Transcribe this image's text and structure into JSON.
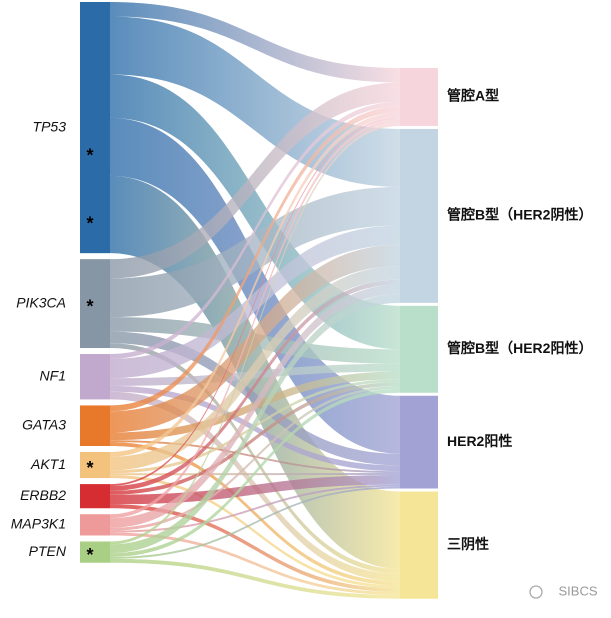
{
  "chart_data": {
    "type": "sankey",
    "sources": [
      {
        "name": "TP53",
        "color": "#2b6ca8",
        "marks": [
          "*",
          "*"
        ]
      },
      {
        "name": "PIK3CA",
        "color": "#8796a5",
        "marks": [
          "*"
        ]
      },
      {
        "name": "NF1",
        "color": "#c0a9cc",
        "marks": []
      },
      {
        "name": "GATA3",
        "color": "#e8792b",
        "marks": []
      },
      {
        "name": "AKT1",
        "color": "#f3c27c",
        "marks": [
          "*"
        ]
      },
      {
        "name": "ERBB2",
        "color": "#d62d33",
        "marks": []
      },
      {
        "name": "MAP3K1",
        "color": "#ef9a9a",
        "marks": []
      },
      {
        "name": "PTEN",
        "color": "#a9cf84",
        "marks": [
          "*"
        ]
      }
    ],
    "targets": [
      {
        "name": "管腔A型",
        "color": "#f6d6dc"
      },
      {
        "name": "管腔B型（HER2阴性）",
        "color": "#c3d5e2"
      },
      {
        "name": "管腔B型（HER2阳性）",
        "color": "#b9dec9"
      },
      {
        "name": "HER2阳性",
        "color": "#a2a3d4"
      },
      {
        "name": "三阴性",
        "color": "#f5e596"
      }
    ],
    "values": [
      [
        15,
        60,
        45,
        60,
        80
      ],
      [
        20,
        40,
        15,
        12,
        5
      ],
      [
        5,
        20,
        8,
        6,
        8
      ],
      [
        6,
        22,
        8,
        2,
        4
      ],
      [
        5,
        14,
        3,
        2,
        3
      ],
      [
        2,
        5,
        4,
        10,
        4
      ],
      [
        4,
        10,
        3,
        2,
        3
      ],
      [
        3,
        9,
        4,
        2,
        4
      ]
    ],
    "watermark": "SIBCS"
  }
}
